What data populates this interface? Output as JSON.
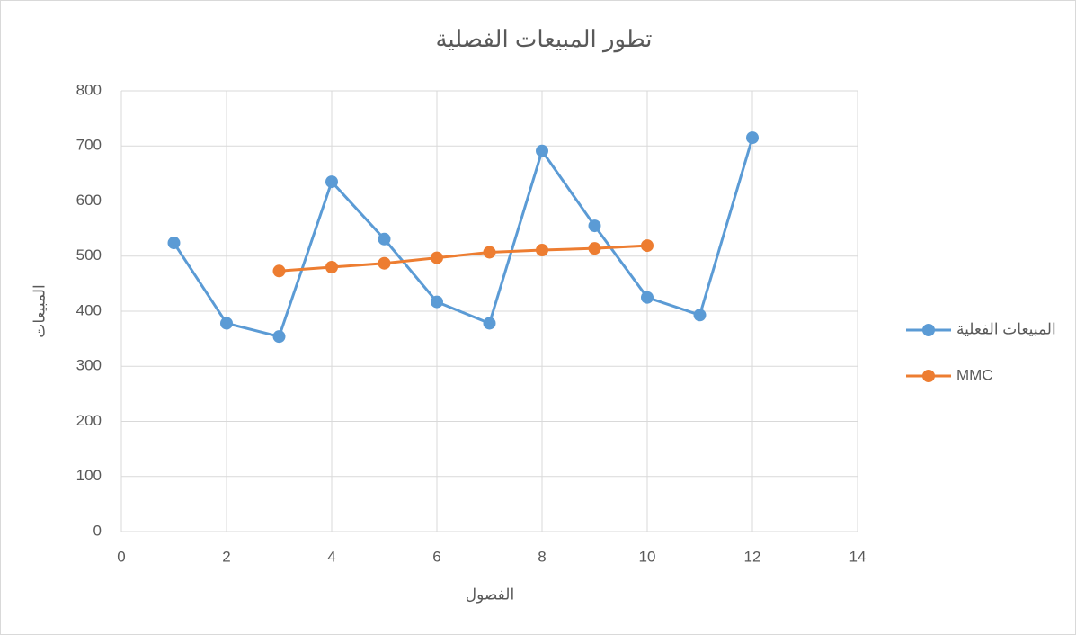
{
  "chart_data": {
    "type": "scatter-line",
    "title": "تطور المبيعات الفصلية",
    "xlabel": "الفصول",
    "ylabel": "المبيعات",
    "xlim": [
      0,
      14
    ],
    "xticks": [
      0,
      2,
      4,
      6,
      8,
      10,
      12,
      14
    ],
    "ylim": [
      0,
      800
    ],
    "yticks": [
      0,
      100,
      200,
      300,
      400,
      500,
      600,
      700,
      800
    ],
    "grid": true,
    "legend": "right",
    "series": [
      {
        "name": "المبيعات الفعلية",
        "color": "#5b9bd5",
        "x": [
          1,
          2,
          3,
          4,
          5,
          6,
          7,
          8,
          9,
          10,
          11,
          12
        ],
        "values": [
          524,
          378,
          354,
          635,
          531,
          417,
          378,
          691,
          555,
          425,
          393,
          715
        ]
      },
      {
        "name": "MMC",
        "color": "#ed7d31",
        "x": [
          3,
          4,
          5,
          6,
          7,
          8,
          9,
          10
        ],
        "values": [
          473,
          480,
          487,
          497,
          507,
          511,
          514,
          519
        ]
      }
    ]
  }
}
